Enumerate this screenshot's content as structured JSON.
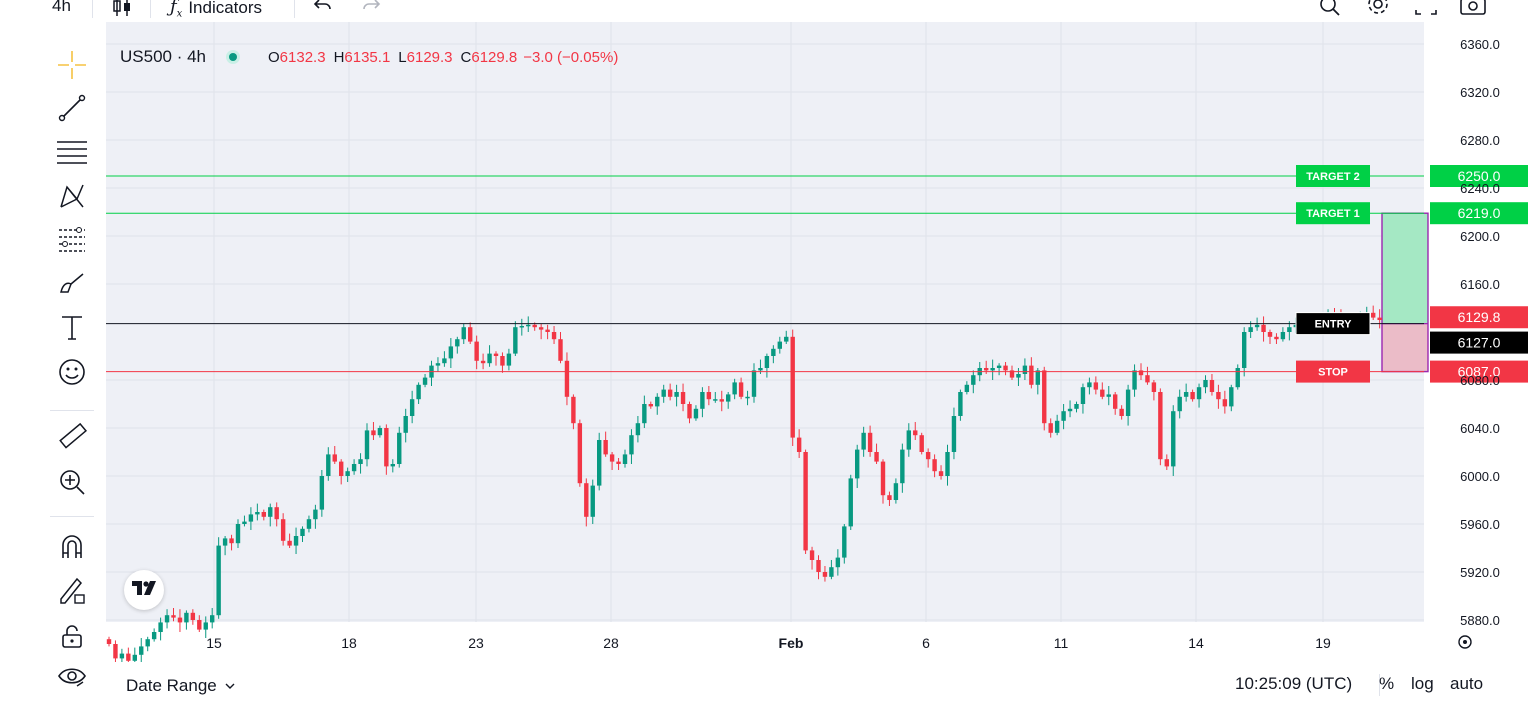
{
  "toolbar": {
    "interval": "4h",
    "indicators_label": "Indicators"
  },
  "legend": {
    "symbol": "US500 · 4h",
    "open_key": "O",
    "open": "6132.3",
    "high_key": "H",
    "high": "6135.1",
    "low_key": "L",
    "low": "6129.3",
    "close_key": "C",
    "close": "6129.8",
    "change": "−3.0 (−0.05%)"
  },
  "bottom": {
    "date_range": "Date Range",
    "clock": "10:25:09 (UTC)",
    "percent": "%",
    "log": "log",
    "auto": "auto"
  },
  "colors": {
    "up": "#089981",
    "down": "#f23645",
    "target": "#00d046",
    "stop": "#f23645",
    "profit_zone": "#a5e8c4",
    "loss_zone": "#ebbcc8",
    "position_border": "#9c27b0"
  },
  "chart_data": {
    "type": "candlestick",
    "symbol": "US500",
    "interval": "4h",
    "ylim": [
      5880,
      6360
    ],
    "yticks": [
      6360.0,
      6320.0,
      6280.0,
      6240.0,
      6200.0,
      6160.0,
      6080.0,
      6040.0,
      6000.0,
      5960.0,
      5920.0,
      5880.0
    ],
    "ytick_labels": [
      "6360.0",
      "6320.0",
      "6280.0",
      "6240.0",
      "6200.0",
      "6160.0",
      "6080.0",
      "6040.0",
      "6000.0",
      "5960.0",
      "5920.0",
      "5880.0"
    ],
    "xtick_labels": [
      "15",
      "18",
      "23",
      "28",
      "Feb",
      "6",
      "11",
      "14",
      "19"
    ],
    "levels": [
      {
        "label": "TARGET 2",
        "value": 6250.0,
        "value_label": "6250.0",
        "kind": "target"
      },
      {
        "label": "TARGET 1",
        "value": 6219.0,
        "value_label": "6219.0",
        "kind": "target"
      },
      {
        "label": "ENTRY",
        "value": 6127.0,
        "value_label": "6127.0",
        "kind": "entry"
      },
      {
        "label": "STOP",
        "value": 6087.0,
        "value_label": "6087.0",
        "kind": "stop"
      }
    ],
    "last_price": {
      "value": 6129.8,
      "label": "6129.8"
    },
    "position": {
      "entry": 6127.0,
      "target": 6219.0,
      "stop": 6087.0
    },
    "grid": true,
    "closes": [
      5860,
      5848,
      5852,
      5846,
      5851,
      5858,
      5864,
      5870,
      5878,
      5884,
      5882,
      5878,
      5886,
      5880,
      5872,
      5878,
      5884,
      5942,
      5948,
      5944,
      5960,
      5962,
      5968,
      5970,
      5966,
      5974,
      5964,
      5946,
      5942,
      5950,
      5956,
      5964,
      5972,
      6000,
      6018,
      6012,
      6000,
      6004,
      6010,
      6014,
      6038,
      6034,
      6040,
      6008,
      6010,
      6036,
      6050,
      6064,
      6076,
      6082,
      6092,
      6094,
      6098,
      6108,
      6114,
      6124,
      6112,
      6096,
      6094,
      6102,
      6100,
      6092,
      6102,
      6124,
      6125,
      6126,
      6124,
      6122,
      6120,
      6114,
      6096,
      6066,
      6044,
      5994,
      5966,
      5992,
      6030,
      6018,
      6012,
      6010,
      6018,
      6034,
      6044,
      6060,
      6058,
      6066,
      6072,
      6066,
      6070,
      6060,
      6048,
      6056,
      6070,
      6064,
      6064,
      6062,
      6068,
      6078,
      6066,
      6066,
      6088,
      6090,
      6100,
      6106,
      6112,
      6116,
      6032,
      6020,
      5938,
      5930,
      5920,
      5916,
      5924,
      5932,
      5958,
      5998,
      6022,
      6036,
      6020,
      6012,
      5984,
      5980,
      5994,
      6022,
      6038,
      6034,
      6020,
      6014,
      6004,
      6000,
      6020,
      6050,
      6070,
      6076,
      6084,
      6090,
      6088,
      6090,
      6092,
      6088,
      6082,
      6085,
      6092,
      6076,
      6088,
      6044,
      6036,
      6046,
      6054,
      6056,
      6060,
      6074,
      6078,
      6072,
      6066,
      6068,
      6056,
      6050,
      6072,
      6088,
      6084,
      6078,
      6070,
      6014,
      6008,
      6054,
      6066,
      6070,
      6064,
      6074,
      6080,
      6070,
      6064,
      6058,
      6074,
      6090,
      6120,
      6124,
      6126,
      6120,
      6116,
      6114,
      6120,
      6124,
      6126,
      6128,
      6128,
      6126,
      6124,
      6134,
      6132,
      6130,
      6128,
      6131,
      6133,
      6136,
      6132,
      6130
    ]
  }
}
